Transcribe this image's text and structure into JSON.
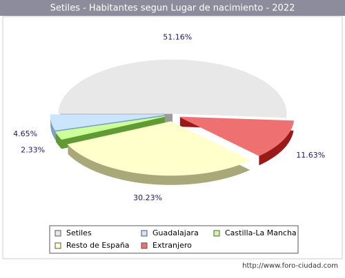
{
  "chart_data": {
    "type": "pie",
    "title": "Setiles - Habitantes segun Lugar de nacimiento - 2022",
    "categories": [
      "Setiles",
      "Extranjero",
      "Resto de España",
      "Castilla-La Mancha",
      "Guadalajara"
    ],
    "values": [
      51.16,
      11.63,
      30.23,
      2.33,
      4.65
    ],
    "value_labels": [
      "51.16%",
      "11.63%",
      "30.23%",
      "2.33%",
      "4.65%"
    ],
    "colors": [
      "#e8e8e8",
      "#ee7070",
      "#ffffcc",
      "#ccff99",
      "#cce5ff"
    ],
    "side_colors": [
      "#9a9a9a",
      "#9a1a1a",
      "#a8a87a",
      "#5f9a34",
      "#7f9fbf"
    ],
    "legend_order": [
      0,
      4,
      3,
      2,
      1
    ]
  },
  "footer": "http://www.foro-ciudad.com"
}
